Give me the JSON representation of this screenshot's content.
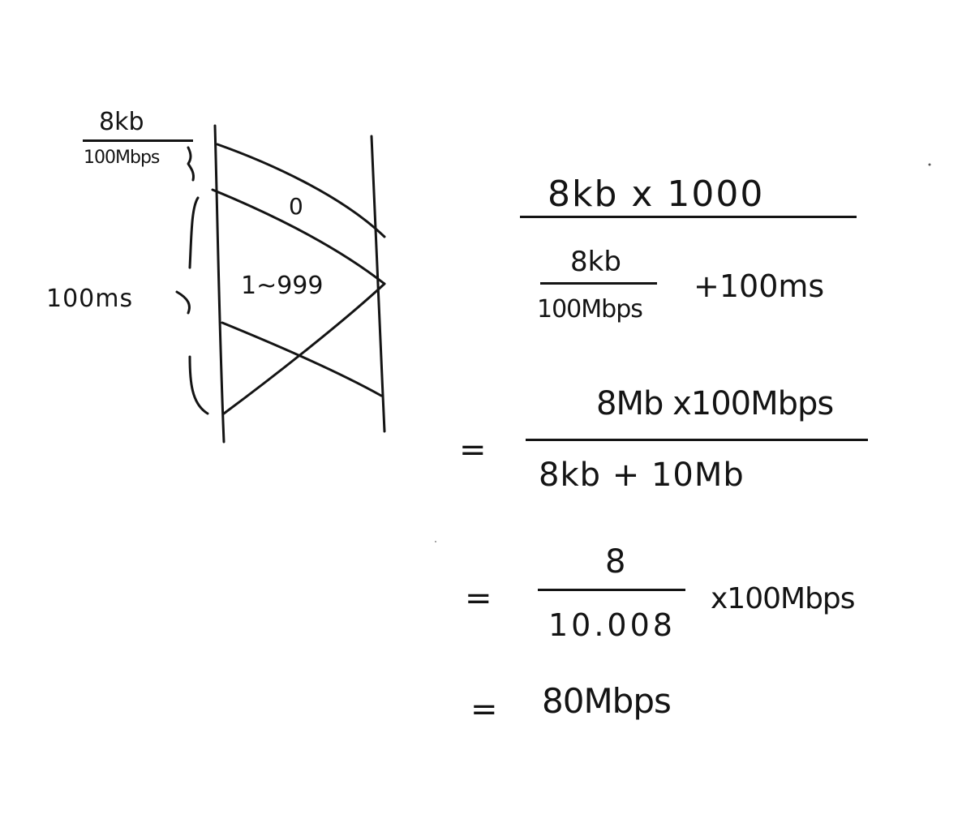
{
  "diagram": {
    "transmission_numerator": "8kb",
    "transmission_denominator": "100Mbps",
    "rtt_label": "100ms",
    "first_packet_label": "0",
    "packet_range_label": "1~999"
  },
  "equation": {
    "line1": {
      "numerator": "8kb x 1000",
      "inner_fraction_numerator": "8kb",
      "inner_fraction_denominator": "100Mbps",
      "plus_term": "+100ms"
    },
    "line2": {
      "sign": "=",
      "numerator": "8Mb x100Mbps",
      "denominator": "8kb + 10Mb"
    },
    "line3": {
      "sign": "=",
      "numerator": "8",
      "denominator": "10.008",
      "multiplier": "x100Mbps"
    },
    "line4": {
      "sign": "=",
      "result": "80Mbps"
    }
  }
}
